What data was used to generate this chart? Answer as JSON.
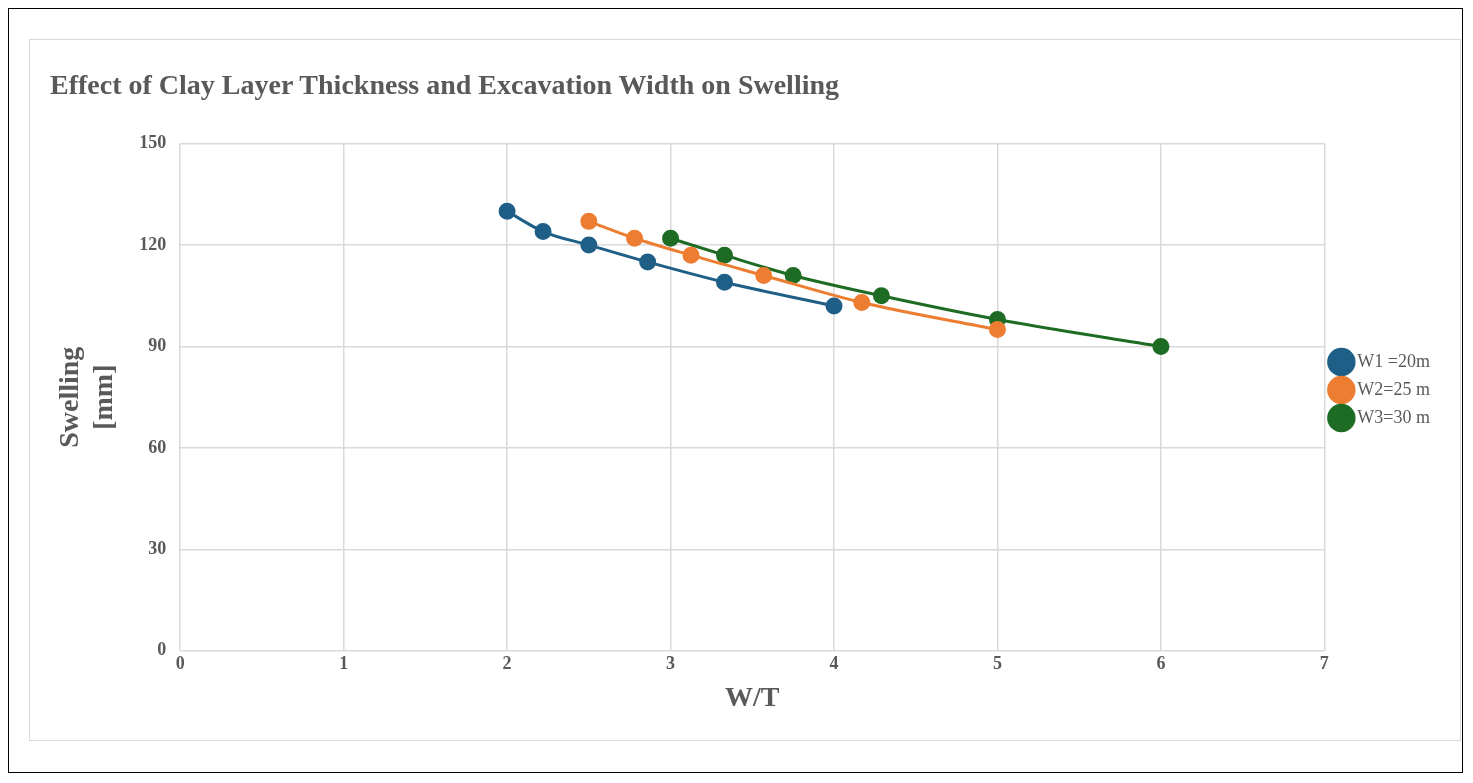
{
  "chart_data": {
    "type": "line",
    "title": "Effect of Clay Layer Thickness and Excavation Width on Swelling",
    "xlabel": "W/T",
    "ylabel": "Swelling\n[mm]",
    "xlim": [
      0,
      7
    ],
    "xticks": [
      0,
      1,
      2,
      3,
      4,
      5,
      6,
      7
    ],
    "ylim": [
      0,
      150
    ],
    "yticks": [
      0,
      30,
      60,
      90,
      120,
      150
    ],
    "grid": true,
    "legend": "right",
    "marker": "circle",
    "line_style": "solid",
    "series": [
      {
        "name": "W1 =20m",
        "color": "#1f5f87",
        "x": [
          2,
          2.22,
          2.5,
          2.86,
          3.33,
          4
        ],
        "values": [
          130,
          124,
          120,
          115,
          109,
          102
        ]
      },
      {
        "name": "W2=25 m",
        "color": "#ed7d31",
        "x": [
          2.5,
          2.78,
          3.125,
          3.57,
          4.17,
          5
        ],
        "values": [
          127,
          122,
          117,
          111,
          103,
          95
        ]
      },
      {
        "name": "W3=30 m",
        "color": "#1e6b24",
        "x": [
          3,
          3.33,
          3.75,
          4.29,
          5,
          6
        ],
        "values": [
          122,
          117,
          111,
          105,
          98,
          90
        ]
      }
    ]
  }
}
